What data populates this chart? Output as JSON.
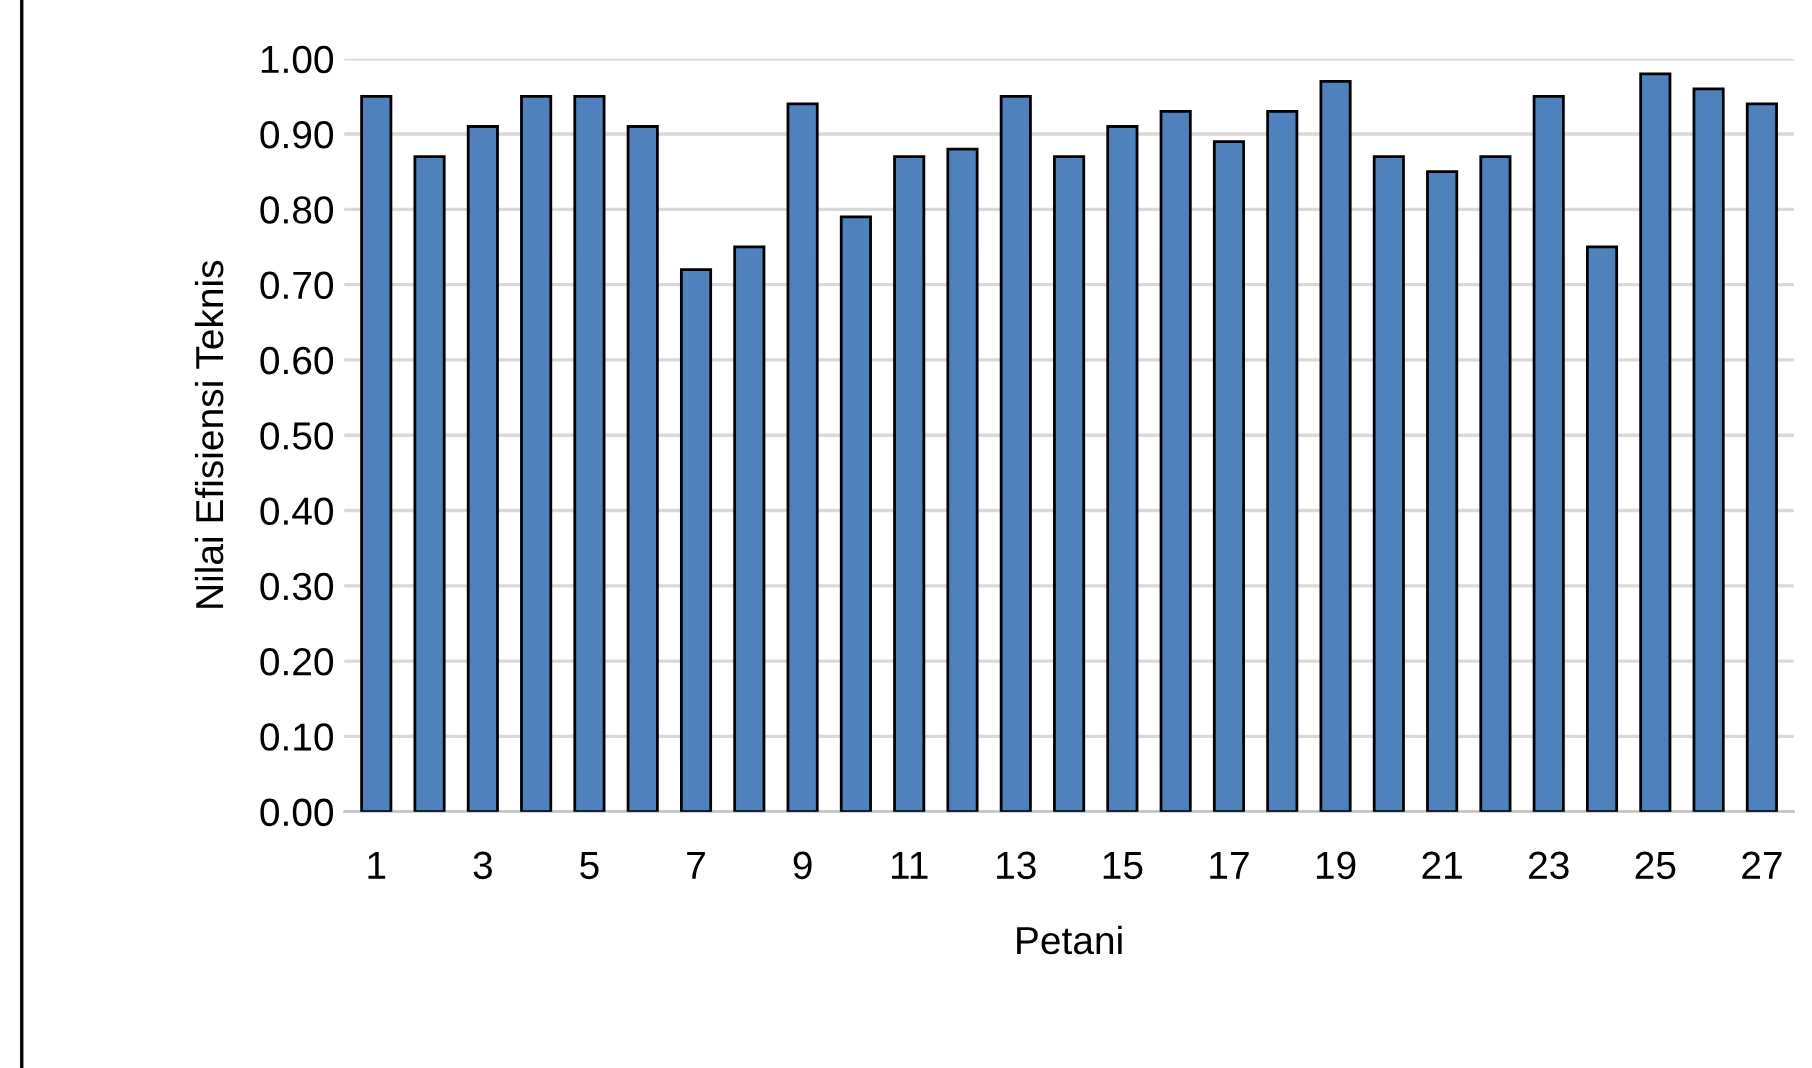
{
  "chart_data": {
    "type": "bar",
    "xlabel": "Petani",
    "ylabel": "Nilai Efisiensi Teknis",
    "categories": [
      "1",
      null,
      "3",
      null,
      "5",
      null,
      "7",
      null,
      "9",
      null,
      "11",
      null,
      "13",
      null,
      "15",
      null,
      "17",
      null,
      "19",
      null,
      "21",
      null,
      "23",
      null,
      "25",
      null,
      "27"
    ],
    "values": [
      0.95,
      0.87,
      0.91,
      0.95,
      0.95,
      0.91,
      0.72,
      0.75,
      0.94,
      0.79,
      0.87,
      0.88,
      0.95,
      0.87,
      0.91,
      0.93,
      0.89,
      0.93,
      0.97,
      0.87,
      0.85,
      0.87,
      0.95,
      0.75,
      0.98,
      0.96,
      0.94
    ],
    "color": "#4f81bd",
    "ylim": [
      0,
      1
    ],
    "yticks": [
      {
        "value": 0,
        "label": "0.00"
      },
      {
        "value": 0.1,
        "label": "0.10"
      },
      {
        "value": 0.2,
        "label": "0.20"
      },
      {
        "value": 0.3,
        "label": "0.30"
      },
      {
        "value": 0.4,
        "label": "0.40"
      },
      {
        "value": 0.5,
        "label": "0.50"
      },
      {
        "value": 0.6,
        "label": "0.60"
      },
      {
        "value": 0.7,
        "label": "0.70"
      },
      {
        "value": 0.8,
        "label": "0.80"
      },
      {
        "value": 0.9,
        "label": "0.90"
      },
      {
        "value": 1,
        "label": "1.00"
      }
    ],
    "grid": "y"
  }
}
